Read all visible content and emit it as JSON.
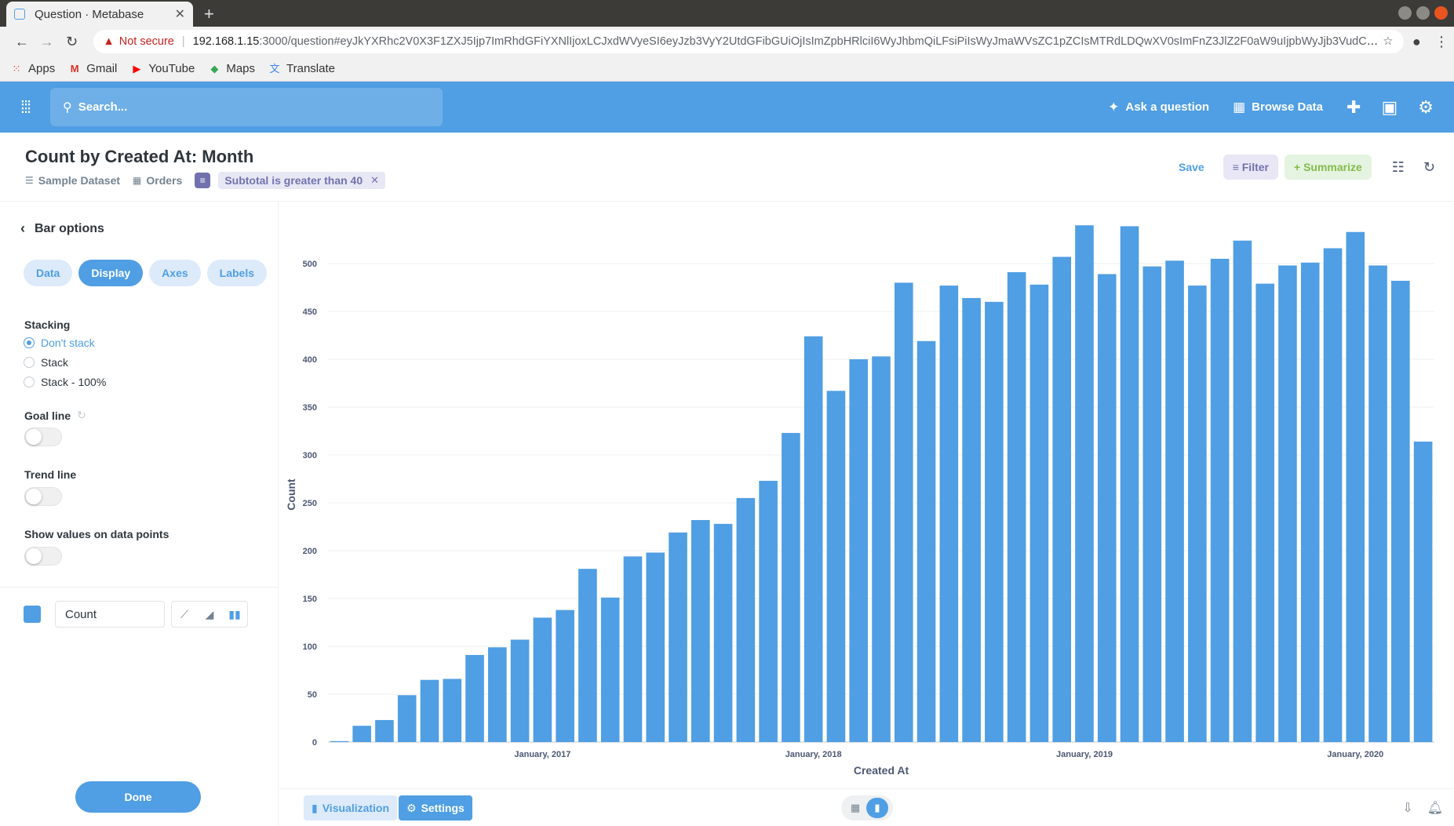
{
  "browser": {
    "tab_title": "Question · Metabase",
    "new_tab": "+",
    "not_secure": "Not secure",
    "url_host": "192.168.1.15",
    "url_rest": ":3000/question#eyJkYXRhc2V0X3F1ZXJ5Ijp7ImRhdGFiYXNlIjoxLCJxdWVyeSI6eyJzb3VyY2UtdGFibGUiOjIsImZpbHRlciI6WyJhbmQiLFsiPiIsWyJmaWVsZC1pZCIsMTRdLDQwXV0sImFnZ3JlZ2F0aW9uIjpbWyJjb3VudCJdXSwiY...",
    "bookmarks": [
      {
        "label": "Apps",
        "icon": "apps-grid-icon",
        "color": "#e8453c"
      },
      {
        "label": "Gmail",
        "icon": "gmail-icon",
        "color": "#d93025"
      },
      {
        "label": "YouTube",
        "icon": "youtube-icon",
        "color": "#ff0000"
      },
      {
        "label": "Maps",
        "icon": "maps-icon",
        "color": "#34a853"
      },
      {
        "label": "Translate",
        "icon": "translate-icon",
        "color": "#4285f4"
      }
    ]
  },
  "nav": {
    "search_placeholder": "Search...",
    "ask_question": "Ask a question",
    "browse_data": "Browse Data"
  },
  "question": {
    "title": "Count by Created At: Month",
    "dataset": "Sample Dataset",
    "table": "Orders",
    "filter": "Subtotal is greater than 40",
    "save": "Save",
    "filter_btn": "Filter",
    "summarize_btn": "Summarize"
  },
  "sidebar": {
    "title": "Bar options",
    "tabs": [
      "Data",
      "Display",
      "Axes",
      "Labels"
    ],
    "active_tab": "Display",
    "stacking_label": "Stacking",
    "stacking_options": [
      "Don't stack",
      "Stack",
      "Stack - 100%"
    ],
    "stacking_selected": "Don't stack",
    "goal_line": "Goal line",
    "trend_line": "Trend line",
    "show_values": "Show values on data points",
    "series_name": "Count",
    "series_color": "#509ee3",
    "done": "Done"
  },
  "footer": {
    "visualization": "Visualization",
    "settings": "Settings"
  },
  "chart_data": {
    "type": "bar",
    "title": "",
    "xlabel": "Created At",
    "ylabel": "Count",
    "ylim": [
      0,
      550
    ],
    "yticks": [
      0,
      50,
      100,
      150,
      200,
      250,
      300,
      350,
      400,
      450,
      500
    ],
    "x_tick_labels": [
      {
        "label": "January, 2017",
        "month": "2017-01"
      },
      {
        "label": "January, 2018",
        "month": "2018-01"
      },
      {
        "label": "January, 2019",
        "month": "2019-01"
      },
      {
        "label": "January, 2020",
        "month": "2020-01"
      }
    ],
    "months": [
      "2016-04",
      "2016-05",
      "2016-06",
      "2016-07",
      "2016-08",
      "2016-09",
      "2016-10",
      "2016-11",
      "2016-12",
      "2017-01",
      "2017-02",
      "2017-03",
      "2017-04",
      "2017-05",
      "2017-06",
      "2017-07",
      "2017-08",
      "2017-09",
      "2017-10",
      "2017-11",
      "2017-12",
      "2018-01",
      "2018-02",
      "2018-03",
      "2018-04",
      "2018-05",
      "2018-06",
      "2018-07",
      "2018-08",
      "2018-09",
      "2018-10",
      "2018-11",
      "2018-12",
      "2019-01",
      "2019-02",
      "2019-03",
      "2019-04",
      "2019-05",
      "2019-06",
      "2019-07",
      "2019-08",
      "2019-09",
      "2019-10",
      "2019-11",
      "2019-12",
      "2020-01",
      "2020-02",
      "2020-03",
      "2020-04"
    ],
    "values": [
      1,
      17,
      23,
      49,
      65,
      66,
      91,
      99,
      107,
      130,
      138,
      181,
      151,
      194,
      198,
      219,
      232,
      228,
      255,
      273,
      323,
      424,
      367,
      400,
      403,
      480,
      419,
      477,
      464,
      460,
      491,
      478,
      507,
      540,
      489,
      539,
      497,
      503,
      477,
      505,
      524,
      479,
      498,
      501,
      516,
      533,
      498,
      482,
      314
    ],
    "color": "#509ee3",
    "grid": true,
    "legend": "none"
  }
}
